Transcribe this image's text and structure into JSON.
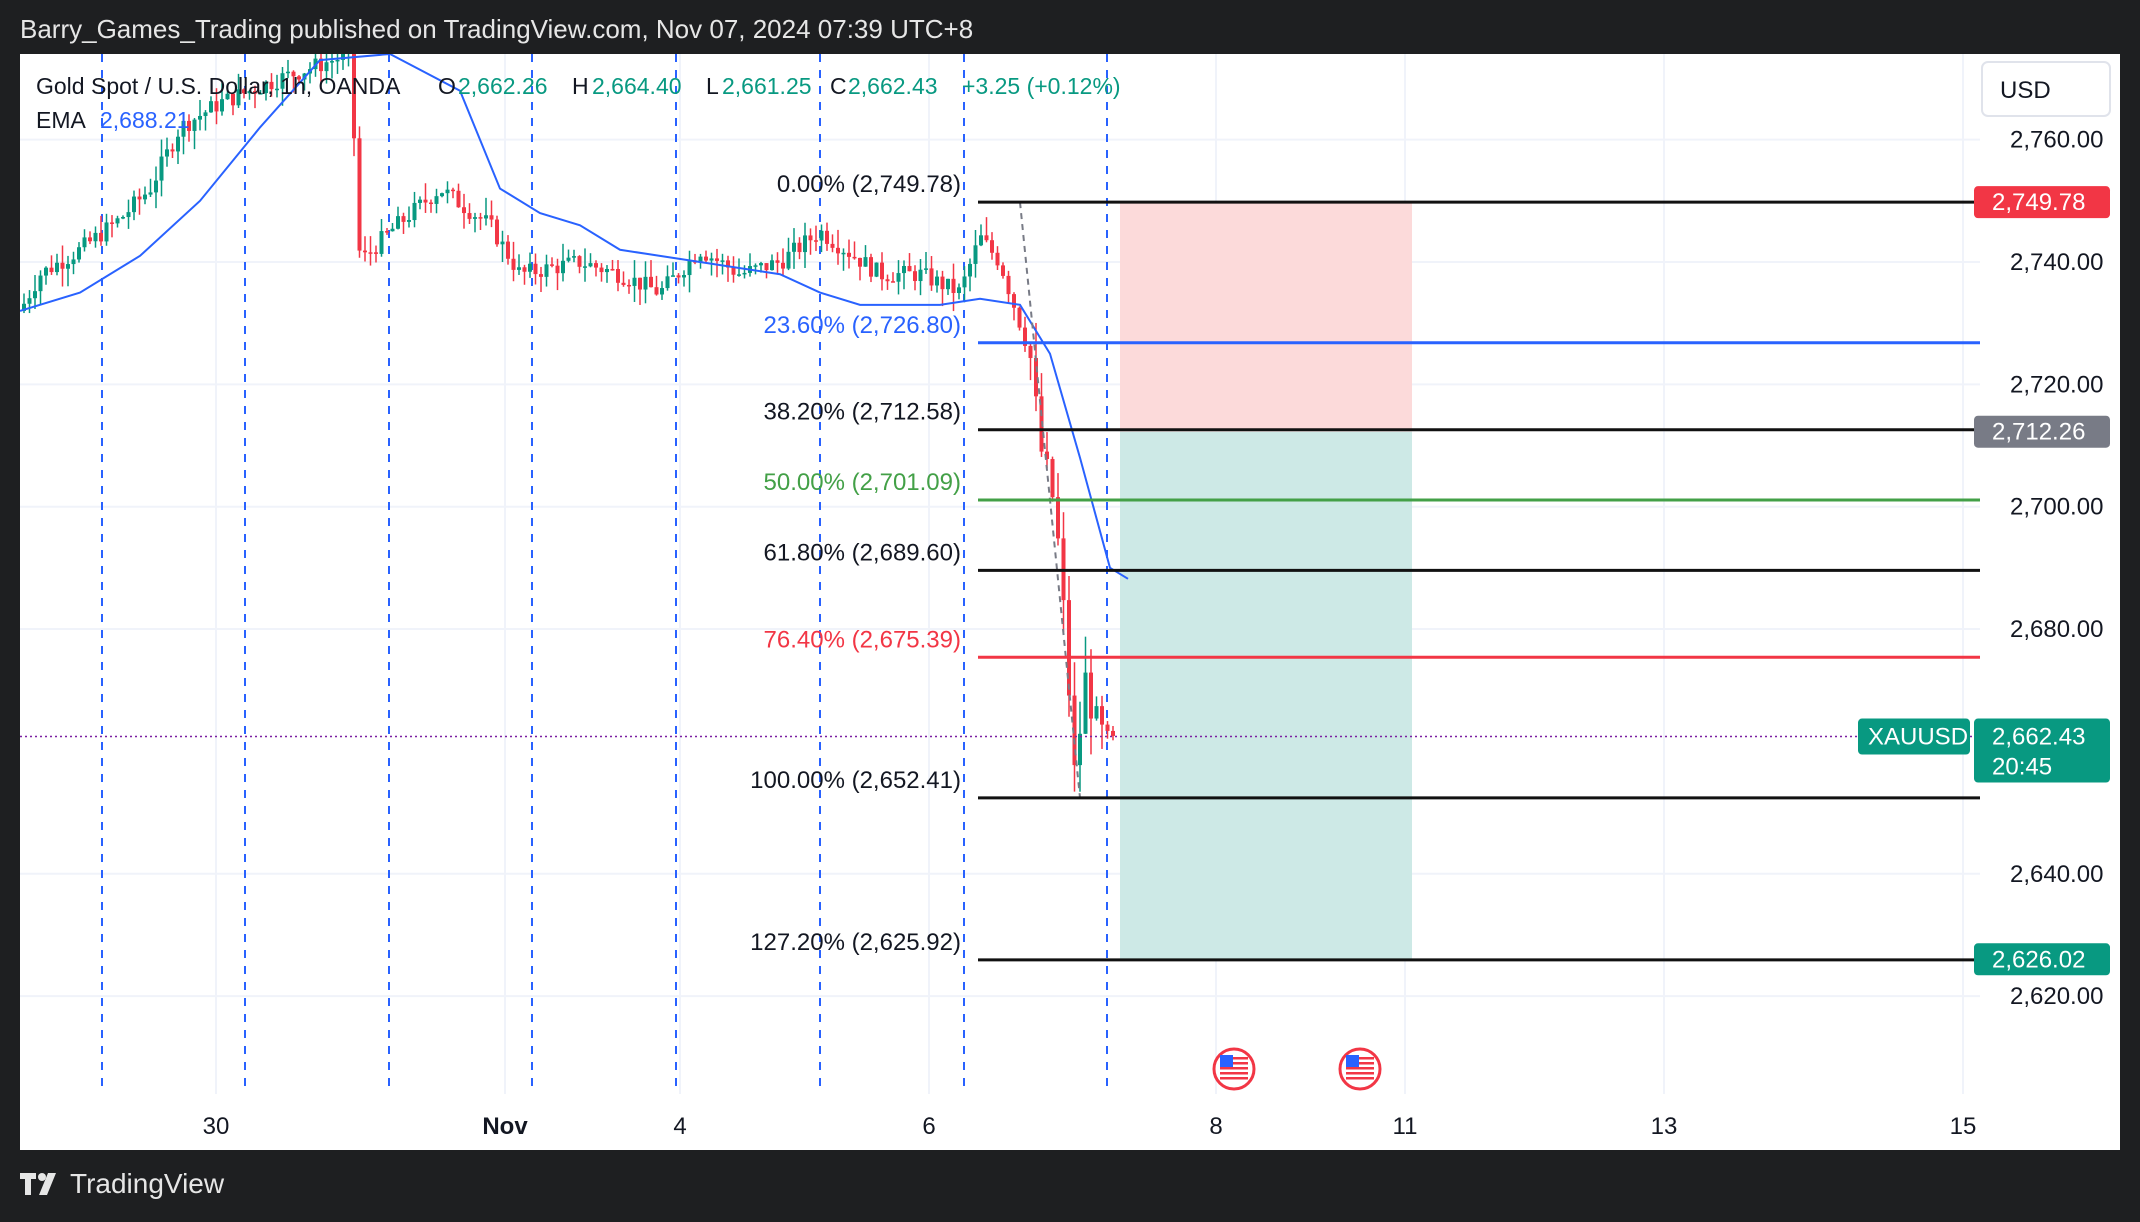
{
  "header": {
    "publisher_line": "Barry_Games_Trading published on TradingView.com, Nov 07, 2024 07:39 UTC+8"
  },
  "footer": {
    "brand": "TradingView",
    "logo_icon": "tradingview-logo-icon"
  },
  "legend": {
    "symbol": "Gold Spot / U.S. Dollar, 1h, OANDA",
    "o_label": "O",
    "o_value": "2,662.26",
    "h_label": "H",
    "h_value": "2,664.40",
    "l_label": "L",
    "l_value": "2,661.25",
    "c_label": "C",
    "c_value": "2,662.43",
    "change": "+3.25 (+0.12%)",
    "ema_label": "EMA",
    "ema_value": "2,688.21"
  },
  "currency_button": "USD",
  "colors": {
    "up": "#089981",
    "down": "#f23645",
    "ema": "#2962ff",
    "fib_blue": "#2962ff",
    "fib_green": "#43a047",
    "fib_red": "#f23645",
    "stop_zone": "#fcdada",
    "target_zone": "#cde9e6"
  },
  "chart_data": {
    "type": "candlestick",
    "symbol": "XAUUSD",
    "ylim": [
      2604,
      2774
    ],
    "price_ticks": [
      "2,760.00",
      "2,740.00",
      "2,720.00",
      "2,700.00",
      "2,680.00",
      "2,640.00",
      "2,620.00"
    ],
    "price_tick_values": [
      2760,
      2740,
      2720,
      2700,
      2680,
      2640,
      2620
    ],
    "time_ticks": [
      "30",
      "Nov",
      "4",
      "6",
      "8",
      "11",
      "13",
      "15"
    ],
    "fib_levels": [
      {
        "label": "0.00% (2,749.78)",
        "value": 2749.78,
        "color": "#111111"
      },
      {
        "label": "23.60% (2,726.80)",
        "value": 2726.8,
        "color": "#2962ff"
      },
      {
        "label": "38.20% (2,712.58)",
        "value": 2712.58,
        "color": "#111111"
      },
      {
        "label": "50.00% (2,701.09)",
        "value": 2701.09,
        "color": "#43a047"
      },
      {
        "label": "61.80% (2,689.60)",
        "value": 2689.6,
        "color": "#111111"
      },
      {
        "label": "76.40% (2,675.39)",
        "value": 2675.39,
        "color": "#f23645"
      },
      {
        "label": "100.00% (2,652.41)",
        "value": 2652.41,
        "color": "#111111"
      },
      {
        "label": "127.20% (2,625.92)",
        "value": 2625.92,
        "color": "#111111"
      }
    ],
    "price_labels": [
      {
        "text": "2,749.78",
        "value": 2749.78,
        "color": "#f23645"
      },
      {
        "text": "2,712.26",
        "value": 2712.26,
        "color": "#787b86"
      },
      {
        "text": "2,626.02",
        "value": 2626.02,
        "color": "#089981"
      }
    ],
    "current_price": {
      "symbol": "XAUUSD",
      "price": "2,662.43",
      "countdown": "20:45",
      "value": 2662.43
    },
    "short_position": {
      "entry": 2712.26,
      "stop": 2749.78,
      "target": 2626.02
    },
    "ema_path": [
      [
        0,
        2732
      ],
      [
        60,
        2735
      ],
      [
        120,
        2741
      ],
      [
        180,
        2750
      ],
      [
        240,
        2762
      ],
      [
        300,
        2773
      ],
      [
        370,
        2774
      ],
      [
        440,
        2768
      ],
      [
        480,
        2752
      ],
      [
        520,
        2748
      ],
      [
        560,
        2746
      ],
      [
        600,
        2742
      ],
      [
        640,
        2741
      ],
      [
        680,
        2740
      ],
      [
        720,
        2739
      ],
      [
        760,
        2738
      ],
      [
        800,
        2735
      ],
      [
        840,
        2733
      ],
      [
        880,
        2733
      ],
      [
        920,
        2733
      ],
      [
        960,
        2734
      ],
      [
        1000,
        2733
      ],
      [
        1030,
        2725
      ],
      [
        1060,
        2708
      ],
      [
        1090,
        2690
      ],
      [
        1108,
        2688.21
      ]
    ],
    "candles_bars": 200,
    "events": [
      "us-flag-icon",
      "us-flag-icon"
    ]
  }
}
